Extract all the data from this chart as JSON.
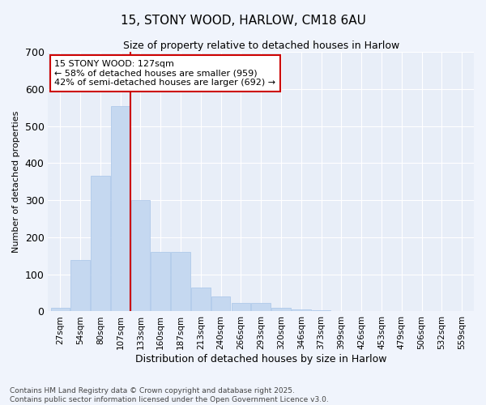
{
  "title1": "15, STONY WOOD, HARLOW, CM18 6AU",
  "title2": "Size of property relative to detached houses in Harlow",
  "xlabel": "Distribution of detached houses by size in Harlow",
  "ylabel": "Number of detached properties",
  "categories": [
    "27sqm",
    "54sqm",
    "80sqm",
    "107sqm",
    "133sqm",
    "160sqm",
    "187sqm",
    "213sqm",
    "240sqm",
    "266sqm",
    "293sqm",
    "320sqm",
    "346sqm",
    "373sqm",
    "399sqm",
    "426sqm",
    "453sqm",
    "479sqm",
    "506sqm",
    "532sqm",
    "559sqm"
  ],
  "values": [
    10,
    138,
    365,
    555,
    300,
    160,
    160,
    65,
    40,
    22,
    22,
    10,
    5,
    3,
    2,
    1,
    0,
    0,
    0,
    0,
    0
  ],
  "bar_color": "#c5d8f0",
  "bar_edgecolor": "#a8c4e8",
  "vline_color": "#cc0000",
  "vline_x_index": 4,
  "annotation_text": "15 STONY WOOD: 127sqm\n← 58% of detached houses are smaller (959)\n42% of semi-detached houses are larger (692) →",
  "annotation_box_facecolor": "#ffffff",
  "annotation_box_edgecolor": "#cc0000",
  "ylim": [
    0,
    700
  ],
  "yticks": [
    0,
    100,
    200,
    300,
    400,
    500,
    600,
    700
  ],
  "footnote": "Contains HM Land Registry data © Crown copyright and database right 2025.\nContains public sector information licensed under the Open Government Licence v3.0.",
  "bg_color": "#f0f4fc",
  "plot_bg_color": "#e8eef8",
  "grid_color": "#ffffff",
  "title1_fontsize": 11,
  "title2_fontsize": 9,
  "xlabel_fontsize": 9,
  "ylabel_fontsize": 8,
  "tick_fontsize": 7.5,
  "annot_fontsize": 8,
  "footnote_fontsize": 6.5
}
